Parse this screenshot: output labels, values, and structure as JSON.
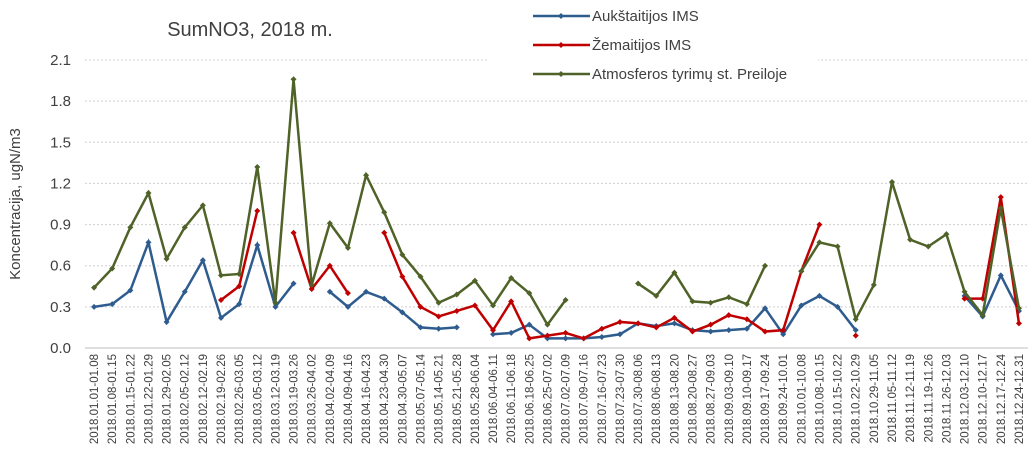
{
  "chart_data": {
    "type": "line",
    "title": "SumNO3, 2018 m.",
    "y_label": "Koncentracija, ugN/m3",
    "categories": [
      "2018.01.01-01.08",
      "2018.01.08-01.15",
      "2018.01.15-01.22",
      "2018.01.22-01.29",
      "2018.01.29-02.05",
      "2018.02.05-02.12",
      "2018.02.12-02.19",
      "2018.02.19-02.26",
      "2018.02.26-03.05",
      "2018.03.05-03.12",
      "2018.03.12-03.19",
      "2018.03.19-03.26",
      "2018.03.26-04.02",
      "2018.04.02-04.09",
      "2018.04.09-04.16",
      "2018.04.16-04.23",
      "2018.04.23-04.30",
      "2018.04.30-05.07",
      "2018.05.07-05.14",
      "2018.05.14-05.21",
      "2018.05.21-05.28",
      "2018.05.28-06.04",
      "2018.06.04-06.11",
      "2018.06.11-06.18",
      "2018.06.18-06.25",
      "2018.06.25-07.02",
      "2018.07.02-07.09",
      "2018.07.09-07.16",
      "2018.07.16-07.23",
      "2018.07.23-07.30",
      "2018.07.30-08.06",
      "2018.08.06-08.13",
      "2018.08.13-08.20",
      "2018.08.20-08.27",
      "2018.08.27-09.03",
      "2018.09.03-09.10",
      "2018.09.10-09.17",
      "2018.09.17-09.24",
      "2018.09.24-10.01",
      "2018.10.01-10.08",
      "2018.10.08-10.15",
      "2018.10.15-10.22",
      "2018.10.22-10.29",
      "2018.10.29-11.05",
      "2018.11.05-11.12",
      "2018.11.12-11.19",
      "2018.11.19-11.26",
      "2018.11.26-12.03",
      "2018.12.03-12.10",
      "2018.12.10-12.17",
      "2018.12.17-12.24",
      "2018.12.24-12.31"
    ],
    "series": [
      {
        "name": "Aukštaitijos IMS",
        "color": "#2e5c8e",
        "values": [
          0.3,
          0.32,
          0.42,
          0.77,
          0.19,
          0.41,
          0.64,
          0.22,
          0.32,
          0.75,
          0.3,
          0.47,
          null,
          0.41,
          0.3,
          0.41,
          0.36,
          0.26,
          0.15,
          0.14,
          0.15,
          null,
          0.1,
          0.11,
          0.17,
          0.07,
          0.07,
          0.07,
          0.08,
          0.1,
          0.18,
          0.16,
          0.18,
          0.13,
          0.12,
          0.13,
          0.14,
          0.29,
          0.1,
          0.31,
          0.38,
          0.3,
          0.13,
          null,
          null,
          null,
          null,
          null,
          0.38,
          0.23,
          0.53,
          0.27
        ]
      },
      {
        "name": "Žemaitijos IMS",
        "color": "#c00000",
        "values": [
          null,
          null,
          null,
          null,
          null,
          null,
          null,
          0.35,
          0.45,
          1.0,
          null,
          0.84,
          0.43,
          0.6,
          0.4,
          null,
          0.84,
          0.52,
          0.3,
          0.23,
          0.27,
          0.31,
          0.13,
          0.34,
          0.07,
          0.09,
          0.11,
          0.07,
          0.14,
          0.19,
          0.18,
          0.15,
          0.22,
          0.12,
          0.17,
          0.24,
          0.21,
          0.12,
          0.13,
          0.56,
          0.9,
          null,
          0.09,
          null,
          null,
          null,
          null,
          null,
          0.36,
          0.36,
          1.1,
          0.18
        ]
      },
      {
        "name": "Atmosferos tyrimų st. Preiloje",
        "color": "#4f6228",
        "values": [
          0.44,
          0.58,
          0.88,
          1.13,
          0.65,
          0.88,
          1.04,
          0.53,
          0.54,
          1.32,
          0.33,
          1.96,
          0.46,
          0.91,
          0.73,
          1.26,
          0.99,
          0.68,
          0.52,
          0.33,
          0.39,
          0.49,
          0.31,
          0.51,
          0.4,
          0.17,
          0.35,
          null,
          null,
          null,
          0.47,
          0.38,
          0.55,
          0.34,
          0.33,
          0.37,
          0.32,
          0.6,
          null,
          0.56,
          0.77,
          0.74,
          0.21,
          0.46,
          1.21,
          0.79,
          0.74,
          0.83,
          0.41,
          0.24,
          1.02,
          0.29
        ]
      }
    ],
    "ylim": [
      0,
      2.1
    ],
    "yticks": [
      {
        "value": 0,
        "label": "0.0"
      },
      0.3,
      0.6,
      0.9,
      1.2,
      1.5,
      1.8,
      2.1
    ],
    "grid": true
  }
}
